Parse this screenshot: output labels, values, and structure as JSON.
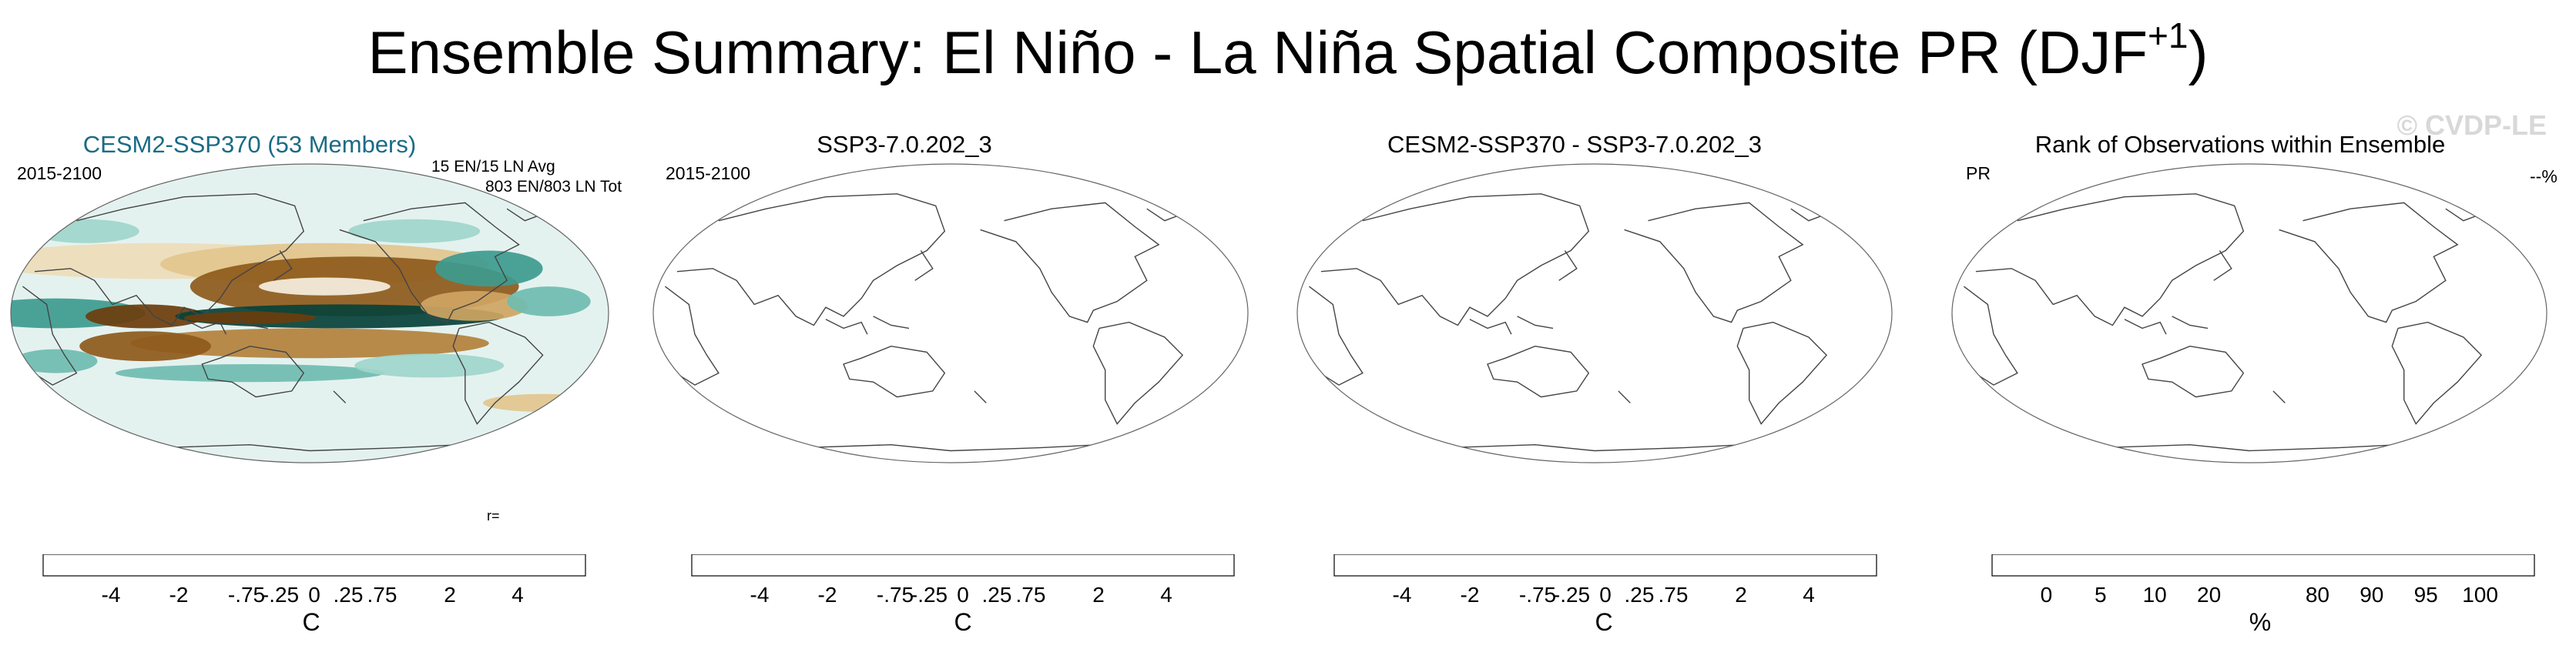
{
  "title": {
    "main": "Ensemble Summary: El Niño - La Niña Spatial Composite PR (DJF",
    "sup": "+1",
    "close": ")"
  },
  "watermark": "© CVDP-LE",
  "panels": [
    {
      "title": "CESM2-SSP370 (53 Members)",
      "left_text": "2015-2100",
      "right_text_1": "15 EN/15 LN Avg",
      "right_text_2": "803 EN/803 LN Tot",
      "r_label": "r=",
      "cbar_title": "C",
      "cbar_labels": [
        "-4",
        "-2",
        "-.75",
        "-.25",
        "0",
        ".25",
        ".75",
        "2",
        "4"
      ]
    },
    {
      "title": "SSP3-7.0.202_3",
      "left_text": "2015-2100",
      "cbar_title": "C",
      "cbar_labels": [
        "-4",
        "-2",
        "-.75",
        "-.25",
        "0",
        ".25",
        ".75",
        "2",
        "4"
      ]
    },
    {
      "title": "CESM2-SSP370 - SSP3-7.0.202_3",
      "cbar_title": "C",
      "cbar_labels": [
        "-4",
        "-2",
        "-.75",
        "-.25",
        "0",
        ".25",
        ".75",
        "2",
        "4"
      ]
    },
    {
      "title": "Rank of Observations within Ensemble",
      "left_text": "PR",
      "right_text_1": "--%",
      "cbar_title": "%",
      "cbar_labels": [
        "0",
        "5",
        "10",
        "20",
        "80",
        "90",
        "95",
        "100"
      ]
    }
  ],
  "colors": {
    "brbg": [
      "#4a2a08",
      "#6b3d0c",
      "#8e5a1b",
      "#b3813c",
      "#cfa563",
      "#e2c68e",
      "#eedcb8",
      "#f6efdf",
      "#e4f2ef",
      "#c9e8e2",
      "#a0d6cc",
      "#6fbcb0",
      "#3d9b8f",
      "#1f7b70",
      "#0b5e55",
      "#064139"
    ],
    "rank": [
      "#0000ee",
      "#6b6bff",
      "#afafff",
      "#dcdcff",
      "#ffffff",
      "#ffffff",
      "#e0ffe0",
      "#b0ffb0",
      "#7bff7b",
      "#00ee00"
    ]
  }
}
